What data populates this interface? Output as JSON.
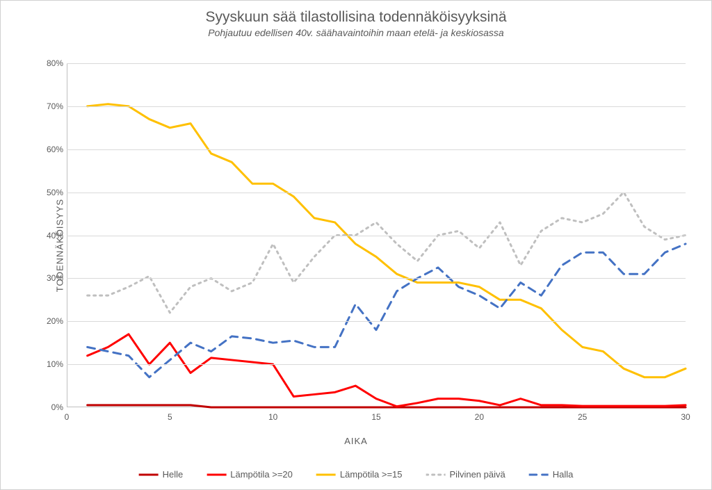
{
  "title": "Syyskuun sää tilastollisina todennäköisyyksinä",
  "subtitle": "Pohjautuu edellisen 40v. säähavaintoihin maan etelä- ja keskiosassa",
  "y_axis_label": "TODENNÄKÖISYYS",
  "x_axis_label": "AIKA",
  "chart": {
    "type": "line",
    "xlim": [
      0,
      30
    ],
    "ylim": [
      0,
      80
    ],
    "x_ticks": [
      0,
      5,
      10,
      15,
      20,
      25,
      30
    ],
    "y_ticks": [
      0,
      10,
      20,
      30,
      40,
      50,
      60,
      70,
      80
    ],
    "y_tick_format": "percent",
    "background_color": "#ffffff",
    "grid_color": "#d9d9d9",
    "axis_color": "#bfbfbf",
    "text_color": "#595959",
    "title_fontsize": 21,
    "subtitle_fontsize": 14,
    "label_fontsize": 13,
    "tick_fontsize": 12,
    "series": [
      {
        "name": "Helle",
        "color": "#c00000",
        "line_width": 3,
        "dash": "solid",
        "x": [
          1,
          2,
          3,
          4,
          5,
          6,
          7,
          8,
          9,
          10,
          11,
          12,
          13,
          14,
          15,
          16,
          17,
          18,
          19,
          20,
          21,
          22,
          23,
          24,
          25,
          26,
          27,
          28,
          29,
          30
        ],
        "y": [
          0.5,
          0.5,
          0.5,
          0.5,
          0.5,
          0.5,
          0,
          0,
          0,
          0,
          0,
          0,
          0,
          0,
          0,
          0,
          0,
          0,
          0,
          0,
          0,
          0,
          0,
          0,
          0,
          0,
          0,
          0,
          0,
          0
        ]
      },
      {
        "name": "Lämpötila >=20",
        "color": "#ff0000",
        "line_width": 3,
        "dash": "solid",
        "x": [
          1,
          2,
          3,
          4,
          5,
          6,
          7,
          8,
          9,
          10,
          11,
          12,
          13,
          14,
          15,
          16,
          17,
          18,
          19,
          20,
          21,
          22,
          23,
          24,
          25,
          26,
          27,
          28,
          29,
          30
        ],
        "y": [
          12,
          14,
          17,
          10,
          15,
          8,
          11.5,
          11,
          10.5,
          10,
          2.5,
          3,
          3.5,
          5,
          2,
          0.2,
          1,
          2,
          2,
          1.5,
          0.5,
          2,
          0.5,
          0.5,
          0.3,
          0.3,
          0.3,
          0.3,
          0.3,
          0.5
        ]
      },
      {
        "name": "Lämpötila >=15",
        "color": "#ffc000",
        "line_width": 3,
        "dash": "solid",
        "x": [
          1,
          2,
          3,
          4,
          5,
          6,
          7,
          8,
          9,
          10,
          11,
          12,
          13,
          14,
          15,
          16,
          17,
          18,
          19,
          20,
          21,
          22,
          23,
          24,
          25,
          26,
          27,
          28,
          29,
          30
        ],
        "y": [
          70,
          70.5,
          70,
          67,
          65,
          66,
          59,
          57,
          52,
          52,
          49,
          44,
          43,
          38,
          35,
          31,
          29,
          29,
          29,
          28,
          25,
          25,
          23,
          18,
          14,
          13,
          9,
          7,
          7,
          9
        ]
      },
      {
        "name": "Pilvinen päivä",
        "color": "#bfbfbf",
        "line_width": 3,
        "dash": "dotted",
        "x": [
          1,
          2,
          3,
          4,
          5,
          6,
          7,
          8,
          9,
          10,
          11,
          12,
          13,
          14,
          15,
          16,
          17,
          18,
          19,
          20,
          21,
          22,
          23,
          24,
          25,
          26,
          27,
          28,
          29,
          30
        ],
        "y": [
          26,
          26,
          28,
          30.5,
          22,
          28,
          30,
          27,
          29,
          38,
          29,
          35,
          40,
          40,
          43,
          38,
          34,
          40,
          41,
          37,
          43,
          33,
          41,
          44,
          43,
          45,
          50,
          42,
          39,
          40
        ]
      },
      {
        "name": "Halla",
        "color": "#4472c4",
        "line_width": 3,
        "dash": "dashed",
        "x": [
          1,
          2,
          3,
          4,
          5,
          6,
          7,
          8,
          9,
          10,
          11,
          12,
          13,
          14,
          15,
          16,
          17,
          18,
          19,
          20,
          21,
          22,
          23,
          24,
          25,
          26,
          27,
          28,
          29,
          30
        ],
        "y": [
          14,
          13,
          12,
          7,
          11,
          15,
          13,
          16.5,
          16,
          15,
          15.5,
          14,
          14,
          24,
          18,
          27,
          30,
          32.5,
          28,
          26,
          23,
          29,
          26,
          33,
          36,
          36,
          31,
          31,
          36,
          38
        ]
      }
    ],
    "legend": {
      "position": "bottom",
      "items": [
        "Helle",
        "Lämpötila >=20",
        "Lämpötila >=15",
        "Pilvinen päivä",
        "Halla"
      ]
    }
  }
}
